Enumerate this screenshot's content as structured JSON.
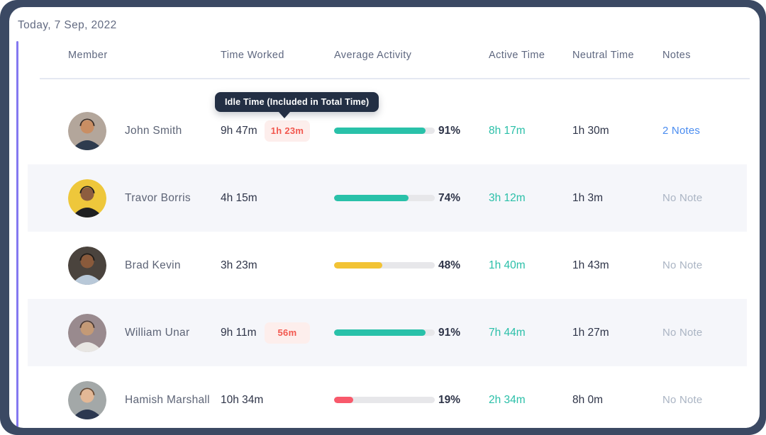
{
  "date_label": "Today, 7 Sep, 2022",
  "tooltip": {
    "text": "Idle Time (Included in Total Time)",
    "bg": "#232f44"
  },
  "colors": {
    "frame": "#3b4963",
    "accent_line": "#8478f0",
    "teal": "#2abfa8",
    "yellow": "#f2c334",
    "red": "#f8596b",
    "idle_badge_bg": "#fdeeec",
    "idle_badge_text": "#f2574e",
    "notes_link": "#4a8cf0",
    "stripe_bg": "#f5f6fa"
  },
  "table": {
    "columns": {
      "member": "Member",
      "time_worked": "Time Worked",
      "average_activity": "Average Activity",
      "active_time": "Active Time",
      "neutral_time": "Neutral Time",
      "notes": "Notes"
    },
    "rows": [
      {
        "name": "John Smith",
        "time_worked": "9h 47m",
        "idle_time": "1h 23m",
        "activity_pct": 91,
        "activity_label": "91%",
        "bar_color": "#29c1a9",
        "active_time": "8h 17m",
        "neutral_time": "1h 30m",
        "notes": "2 Notes",
        "avatar": {
          "bg": "#b3a69b",
          "skin": "#c98e63",
          "hair": "#3a2e28",
          "shirt": "#2e3b4e"
        }
      },
      {
        "name": "Travor Borris",
        "time_worked": "4h 15m",
        "idle_time": "",
        "activity_pct": 74,
        "activity_label": "74%",
        "bar_color": "#29c1a9",
        "active_time": "3h 12m",
        "neutral_time": "1h 3m",
        "notes": "No Note",
        "avatar": {
          "bg": "#eec73b",
          "skin": "#8d5d3f",
          "hair": "#1d1d1f",
          "shirt": "#1f2022"
        }
      },
      {
        "name": "Brad Kevin",
        "time_worked": "3h 23m",
        "idle_time": "",
        "activity_pct": 48,
        "activity_label": "48%",
        "bar_color": "#f2c334",
        "active_time": "1h 40m",
        "neutral_time": "1h 43m",
        "notes": "No Note",
        "avatar": {
          "bg": "#4a433d",
          "skin": "#8a5a3b",
          "hair": "#1f1b18",
          "shirt": "#b8c8d8"
        }
      },
      {
        "name": "William Unar",
        "time_worked": "9h 11m",
        "idle_time": "56m",
        "activity_pct": 91,
        "activity_label": "91%",
        "bar_color": "#29c1a9",
        "active_time": "7h 44m",
        "neutral_time": "1h 27m",
        "notes": "No Note",
        "avatar": {
          "bg": "#998a8e",
          "skin": "#c49a76",
          "hair": "#4b3a33",
          "shirt": "#e8e6e3"
        }
      },
      {
        "name": "Hamish Marshall",
        "time_worked": "10h 34m",
        "idle_time": "",
        "activity_pct": 19,
        "activity_label": "19%",
        "bar_color": "#f8596b",
        "active_time": "2h 34m",
        "neutral_time": "8h 0m",
        "notes": "No Note",
        "avatar": {
          "bg": "#a3a8a8",
          "skin": "#e3b896",
          "hair": "#6b4a33",
          "shirt": "#2c3850"
        }
      }
    ]
  }
}
